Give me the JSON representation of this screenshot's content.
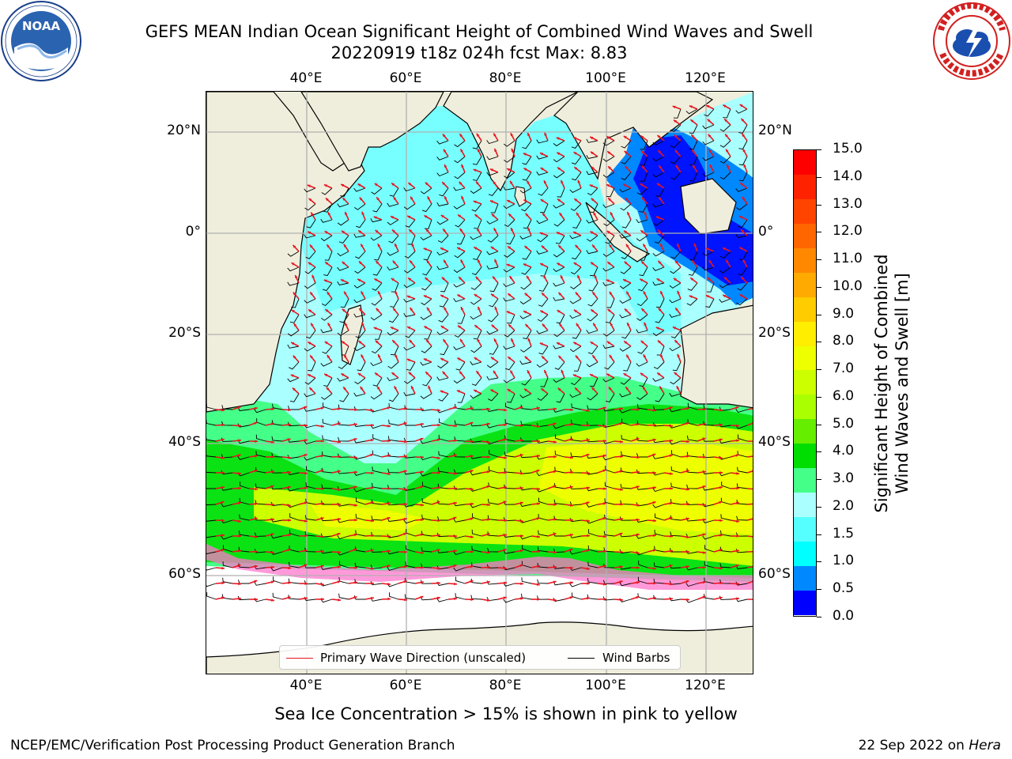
{
  "header": {
    "title_line1": "GEFS MEAN Indian Ocean Significant Height of Combined Wind Waves and Swell",
    "title_line2": "20220919 t18z 024h fcst   Max: 8.83"
  },
  "logos": {
    "left": {
      "name": "NOAA",
      "text": "NOAA",
      "ring_text": "NATIONAL OCEANIC AND ATMOSPHERIC ADMINISTRATION · U.S. DEPARTMENT OF COMMERCE"
    },
    "right": {
      "name": "National Weather Service",
      "ring_text": "NATIONAL WEATHER SERVICE"
    }
  },
  "map": {
    "lon_ticks_top": [
      "40°E",
      "60°E",
      "80°E",
      "100°E",
      "120°E"
    ],
    "lon_ticks_bottom": [
      "40°E",
      "60°E",
      "80°E",
      "100°E",
      "120°E"
    ],
    "lat_ticks_left": [
      "20°N",
      "0°",
      "20°S",
      "40°S",
      "60°S"
    ],
    "lat_ticks_right": [
      "20°N",
      "0°",
      "20°S",
      "40°S",
      "60°S"
    ],
    "colors": {
      "land": "#efeedc",
      "ice_free_white": "#ffffff",
      "grid": "#b0b0b0",
      "arrow": "#e8141e",
      "barb": "#000000"
    }
  },
  "legend": {
    "wave_direction_label": "Primary Wave Direction (unscaled)",
    "wave_direction_color": "#e8141e",
    "wind_barbs_label": "Wind Barbs",
    "wind_barbs_color": "#000000"
  },
  "colorbar": {
    "title_line1": "Significant Height of Combined",
    "title_line2": "Wind Waves and Swell [m]",
    "labels": [
      "15.0",
      "14.0",
      "13.0",
      "12.0",
      "11.0",
      "10.0",
      "9.0",
      "8.0",
      "7.0",
      "6.0",
      "5.0",
      "4.0",
      "3.0",
      "2.0",
      "1.5",
      "1.0",
      "0.5",
      "0.0"
    ],
    "colors_top_to_bottom": [
      "#ff0000",
      "#ff2200",
      "#ff4400",
      "#ff6600",
      "#ff8800",
      "#ffaa00",
      "#ffcc00",
      "#ffee00",
      "#eeff00",
      "#ccff00",
      "#aaff00",
      "#66ee00",
      "#00dd00",
      "#44ff88",
      "#aaffff",
      "#55ffff",
      "#00ffff",
      "#0088ff",
      "#0000ff"
    ]
  },
  "footer": {
    "sea_ice_note": "Sea Ice Concentration > 15% is shown in pink to yellow",
    "left": "NCEP/EMC/Verification Post Processing Product Generation Branch",
    "right_prefix": "22 Sep 2022 on ",
    "right_host": "Hera"
  }
}
